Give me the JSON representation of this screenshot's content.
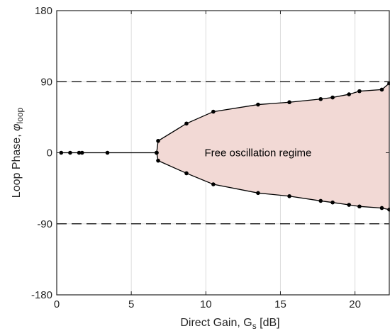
{
  "chart_data": {
    "type": "line",
    "xlabel": "Direct Gain, G",
    "xlabel_sub": "s",
    "xlabel_unit": " [dB]",
    "ylabel": "Loop Phase, ",
    "ylabel_sym": "φ",
    "ylabel_sub": "loop",
    "xlim": [
      0,
      22.3
    ],
    "ylim": [
      -180,
      180
    ],
    "x_ticks": [
      0,
      5,
      10,
      15,
      20
    ],
    "y_ticks": [
      -180,
      -90,
      0,
      90,
      180
    ],
    "x_tick_labels": [
      "0",
      "5",
      "10",
      "15",
      "20"
    ],
    "y_tick_labels": [
      "-180",
      "-90",
      "0",
      "90",
      "180"
    ],
    "grid": true,
    "reference_lines_y": [
      90,
      -90
    ],
    "annotation": "Free oscillation regime",
    "annotation_at": [
      13.5,
      0
    ],
    "series": [
      {
        "role": "zero-phase branch",
        "x": [
          0.3,
          0.9,
          1.5,
          1.7,
          3.4,
          6.7
        ],
        "y": [
          0,
          0,
          0,
          0,
          0,
          0
        ]
      },
      {
        "role": "upper boundary",
        "x": [
          6.7,
          6.8,
          8.7,
          10.5,
          13.5,
          15.6,
          17.7,
          18.5,
          19.6,
          20.3,
          21.8,
          22.3
        ],
        "y": [
          0,
          15,
          37,
          52,
          61,
          64,
          68,
          70,
          74,
          78,
          80,
          88
        ]
      },
      {
        "role": "lower boundary",
        "x": [
          6.7,
          6.8,
          8.7,
          10.5,
          13.5,
          15.6,
          17.7,
          18.5,
          19.6,
          20.3,
          21.8,
          22.3
        ],
        "y": [
          0,
          -10,
          -26,
          -40,
          -51,
          -55,
          -61,
          -63,
          -66,
          -68,
          -70,
          -72
        ]
      }
    ],
    "colors": {
      "region_fill": "#f2d9d5",
      "line": "#000000",
      "grid": "#dcdcdc",
      "reference": "#000000",
      "axes": "#262626"
    }
  }
}
